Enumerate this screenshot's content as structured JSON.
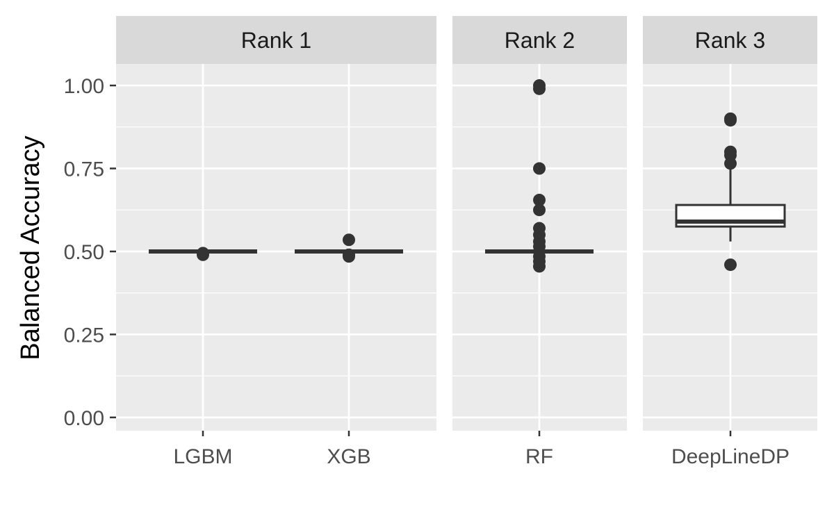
{
  "chart_data": {
    "type": "boxplot",
    "ylabel": "Balanced Accuracy",
    "xlabel": "",
    "ylim": [
      -0.04,
      1.065
    ],
    "yticks": [
      0.0,
      0.25,
      0.5,
      0.75,
      1.0
    ],
    "ytick_labels": [
      "0.00",
      "0.25",
      "0.50",
      "0.75",
      "1.00"
    ],
    "grid": true,
    "facets": [
      {
        "label": "Rank 1",
        "categories": [
          {
            "name": "LGBM",
            "whisker_low": 0.5,
            "q1": 0.5,
            "median": 0.5,
            "q3": 0.5,
            "whisker_high": 0.5,
            "outliers": [
              0.49,
              0.495
            ]
          },
          {
            "name": "XGB",
            "whisker_low": 0.5,
            "q1": 0.5,
            "median": 0.5,
            "q3": 0.5,
            "whisker_high": 0.5,
            "outliers": [
              0.535,
              0.49,
              0.485
            ]
          }
        ]
      },
      {
        "label": "Rank 2",
        "categories": [
          {
            "name": "RF",
            "whisker_low": 0.5,
            "q1": 0.5,
            "median": 0.5,
            "q3": 0.5,
            "whisker_high": 0.5,
            "outliers": [
              1.0,
              0.99,
              0.75,
              0.655,
              0.625,
              0.57,
              0.55,
              0.53,
              0.515,
              0.485,
              0.47,
              0.455
            ]
          }
        ]
      },
      {
        "label": "Rank 3",
        "categories": [
          {
            "name": "DeepLineDP",
            "whisker_low": 0.53,
            "q1": 0.575,
            "median": 0.59,
            "q3": 0.64,
            "whisker_high": 0.75,
            "outliers": [
              0.9,
              0.895,
              0.8,
              0.79,
              0.765,
              0.46
            ]
          }
        ]
      }
    ]
  }
}
